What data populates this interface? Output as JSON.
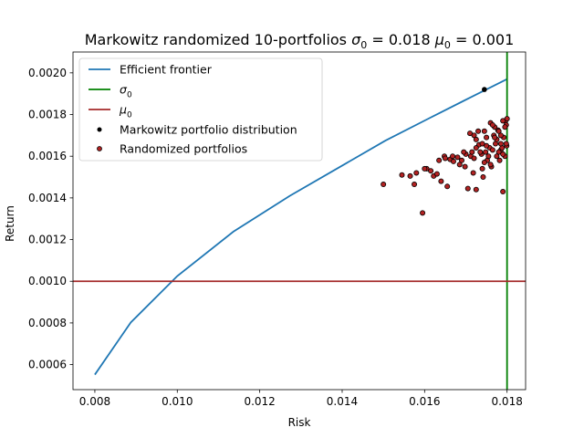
{
  "chart_data": {
    "type": "scatter",
    "title_prefix": "Markowitz randomized 10-portfolios ",
    "title_sigma": "σ",
    "title_sigma_sub": "0",
    "title_eq1": " = 0.018 ",
    "title_mu": "μ",
    "title_mu_sub": "0",
    "title_eq2": " = 0.001",
    "xlabel": "Risk",
    "ylabel": "Return",
    "xlim": [
      0.00747,
      0.01845
    ],
    "ylim": [
      0.00048,
      0.0021
    ],
    "xticks": [
      0.008,
      0.01,
      0.012,
      0.014,
      0.016,
      0.018
    ],
    "xtick_labels": [
      "0.008",
      "0.010",
      "0.012",
      "0.014",
      "0.016",
      "0.018"
    ],
    "yticks": [
      0.0006,
      0.0008,
      0.001,
      0.0012,
      0.0014,
      0.0016,
      0.0018,
      0.002
    ],
    "ytick_labels": [
      "0.0006",
      "0.0008",
      "0.0010",
      "0.0012",
      "0.0014",
      "0.0016",
      "0.0018",
      "0.0020"
    ],
    "grid": false,
    "legend_position": "top-left",
    "sigma0": 0.018,
    "mu0": 0.001,
    "colors": {
      "frontier": "#1f77b4",
      "sigma_line": "#008000",
      "mu_line": "#a52a2a",
      "markowitz": "#000000",
      "randomized_face": "#b22222",
      "randomized_edge": "#000000"
    },
    "series": [
      {
        "name": "Efficient frontier",
        "kind": "line",
        "x": [
          0.008,
          0.00887,
          0.01,
          0.01136,
          0.01273,
          0.01394,
          0.01505,
          0.01611,
          0.01711,
          0.018
        ],
        "y": [
          0.000552,
          0.000802,
          0.001025,
          0.001238,
          0.00141,
          0.001548,
          0.001675,
          0.001782,
          0.001882,
          0.00197
        ]
      },
      {
        "name": "σ0",
        "legend_main": "σ",
        "legend_sub": "0",
        "kind": "vline",
        "x": 0.018
      },
      {
        "name": "μ0",
        "legend_main": "μ",
        "legend_sub": "0",
        "kind": "hline",
        "y": 0.001
      },
      {
        "name": "Markowitz portfolio distribution",
        "kind": "scatter",
        "x": [
          0.01745
        ],
        "y": [
          0.00192
        ]
      },
      {
        "name": "Randomized portfolios",
        "kind": "scatter",
        "x": [
          0.015,
          0.01545,
          0.01565,
          0.0158,
          0.01575,
          0.01595,
          0.01605,
          0.01615,
          0.01622,
          0.0163,
          0.0164,
          0.01648,
          0.01655,
          0.01662,
          0.01668,
          0.0168,
          0.0169,
          0.01698,
          0.01705,
          0.01712,
          0.01718,
          0.01725,
          0.01732,
          0.01738,
          0.01742,
          0.01748,
          0.01752,
          0.01758,
          0.01762,
          0.01768,
          0.01772,
          0.01775,
          0.01778,
          0.01782,
          0.01785,
          0.01788,
          0.0179,
          0.01792,
          0.01795,
          0.01796,
          0.01798,
          0.01799,
          0.018,
          0.0171,
          0.0172,
          0.0173,
          0.0174,
          0.0175,
          0.0176,
          0.0177,
          0.0178,
          0.0179,
          0.017,
          0.01715,
          0.01735,
          0.01745,
          0.01755,
          0.01765,
          0.01775,
          0.01785,
          0.01795,
          0.016,
          0.01635,
          0.0165,
          0.0167,
          0.01685,
          0.01695,
          0.01725,
          0.0174,
          0.0176,
          0.0178,
          0.01798,
          0.0172,
          0.0175,
          0.0177,
          0.0179,
          0.01725,
          0.01745,
          0.01765,
          0.01785
        ],
        "y": [
          0.001465,
          0.00151,
          0.001505,
          0.00152,
          0.001465,
          0.001328,
          0.00154,
          0.00153,
          0.001505,
          0.001515,
          0.00148,
          0.0016,
          0.001455,
          0.001585,
          0.0016,
          0.001595,
          0.00158,
          0.00155,
          0.001445,
          0.0016,
          0.00152,
          0.00144,
          0.001655,
          0.00161,
          0.0015,
          0.00162,
          0.00158,
          0.00164,
          0.00155,
          0.0017,
          0.00166,
          0.0016,
          0.001725,
          0.00158,
          0.00163,
          0.00164,
          0.00143,
          0.00169,
          0.0016,
          0.00177,
          0.00175,
          0.00165,
          0.00178,
          0.00171,
          0.0017,
          0.00172,
          0.00166,
          0.00169,
          0.00176,
          0.00174,
          0.00172,
          0.00177,
          0.00161,
          0.00162,
          0.00162,
          0.00157,
          0.0016,
          0.00163,
          0.00168,
          0.0017,
          0.00174,
          0.00154,
          0.00158,
          0.00159,
          0.001575,
          0.00156,
          0.00162,
          0.00164,
          0.00154,
          0.00156,
          0.00162,
          0.00166,
          0.00159,
          0.00165,
          0.00169,
          0.00161,
          0.00168,
          0.00172,
          0.00175,
          0.00166
        ]
      }
    ]
  }
}
